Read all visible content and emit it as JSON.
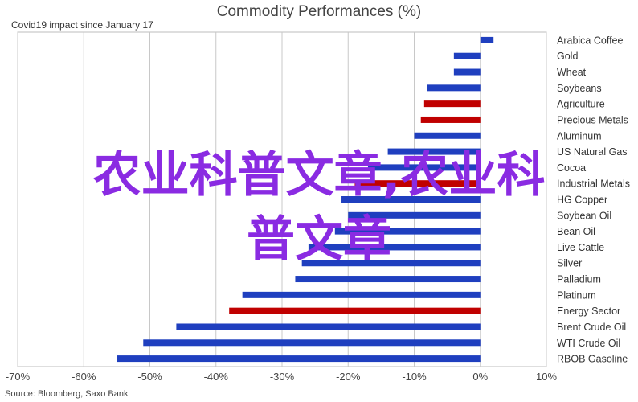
{
  "chart_data": {
    "type": "bar",
    "orientation": "horizontal",
    "title": "Commodity Performances (%)",
    "subtitle": "Covid19 impact since January 17",
    "source": "Source: Bloomberg, Saxo Bank",
    "xlabel": "",
    "ylabel": "",
    "xlim": [
      -70,
      10
    ],
    "x_ticks": [
      "-70%",
      "-60%",
      "-50%",
      "-40%",
      "-30%",
      "-20%",
      "-10%",
      "0%",
      "10%"
    ],
    "grid": true,
    "categories": [
      "Arabica Coffee",
      "Gold",
      "Wheat",
      "Soybeans",
      "Agriculture",
      "Precious Metals",
      "Aluminum",
      "US Natural Gas",
      "Cocoa",
      "Industrial Metals",
      "HG Copper",
      "Soybean Oil",
      "Bean Oil",
      "Live Cattle",
      "Silver",
      "Palladium",
      "Platinum",
      "Energy Sector",
      "Brent Crude Oil",
      "WTI Crude Oil",
      "RBOB Gasoline"
    ],
    "values": [
      2,
      -4,
      -4,
      -8,
      -8.5,
      -9,
      -10,
      -14,
      -17,
      -19,
      -21,
      -20,
      -22,
      -26,
      -27,
      -28,
      -36,
      -38,
      -46,
      -51,
      -55
    ],
    "bar_colors": [
      "#1f3fbf",
      "#1f3fbf",
      "#1f3fbf",
      "#1f3fbf",
      "#c00000",
      "#c00000",
      "#1f3fbf",
      "#1f3fbf",
      "#1f3fbf",
      "#c00000",
      "#1f3fbf",
      "#1f3fbf",
      "#1f3fbf",
      "#1f3fbf",
      "#1f3fbf",
      "#1f3fbf",
      "#1f3fbf",
      "#c00000",
      "#1f3fbf",
      "#1f3fbf",
      "#1f3fbf"
    ],
    "colors": {
      "series": "#1f3fbf",
      "aggregate": "#c00000",
      "grid": "#c8c8c8"
    }
  },
  "watermark": {
    "line1": "农业科普文章,农业科",
    "line2": "普文章"
  }
}
